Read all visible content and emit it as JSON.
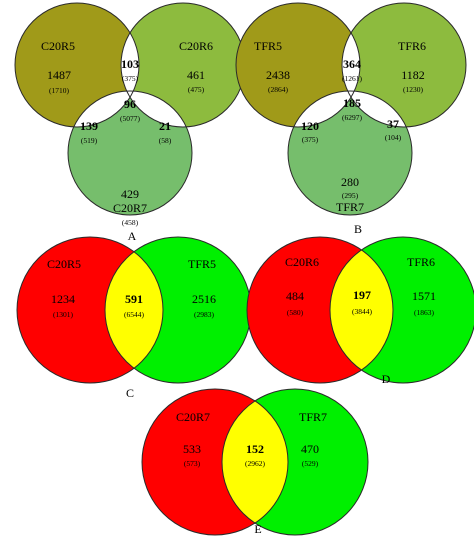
{
  "colors": {
    "olive": "#a09a19",
    "lightgreen": "#8dbb3e",
    "midgreen": "#76be6c",
    "white": "#ffffff",
    "red": "#ff0000",
    "green": "#00f000",
    "yellow": "#ffff00"
  },
  "panels": {
    "A": {
      "caption": "A",
      "set1": {
        "label": "C20R5",
        "only": "1487",
        "only_sub": "(1710)"
      },
      "set2": {
        "label": "C20R6",
        "only": "461",
        "only_sub": "(475)"
      },
      "set3": {
        "label": "C20R7",
        "only": "429",
        "only_sub": "(458)"
      },
      "i12": {
        "val": "103",
        "sub": "(375)"
      },
      "i13": {
        "val": "139",
        "sub": "(519)"
      },
      "i23": {
        "val": "21",
        "sub": "(58)"
      },
      "i123": {
        "val": "96",
        "sub": "(5077)"
      }
    },
    "B": {
      "caption": "B",
      "set1": {
        "label": "TFR5",
        "only": "2438",
        "only_sub": "(2864)"
      },
      "set2": {
        "label": "TFR6",
        "only": "1182",
        "only_sub": "(1230)"
      },
      "set3": {
        "label": "TFR7",
        "only": "280",
        "only_sub": "(295)"
      },
      "i12": {
        "val": "364",
        "sub": "(1261)"
      },
      "i13": {
        "val": "120",
        "sub": "(375)"
      },
      "i23": {
        "val": "37",
        "sub": "(104)"
      },
      "i123": {
        "val": "185",
        "sub": "(6297)"
      }
    },
    "C": {
      "caption": "C",
      "left": {
        "label": "C20R5",
        "only": "1234",
        "only_sub": "(1301)"
      },
      "right": {
        "label": "TFR5",
        "only": "2516",
        "only_sub": "(2983)"
      },
      "inter": {
        "val": "591",
        "sub": "(6544)"
      }
    },
    "D": {
      "caption": "D",
      "left": {
        "label": "C20R6",
        "only": "484",
        "only_sub": "(580)"
      },
      "right": {
        "label": "TFR6",
        "only": "1571",
        "only_sub": "(1863)"
      },
      "inter": {
        "val": "197",
        "sub": "(3844)"
      }
    },
    "E": {
      "caption": "E",
      "left": {
        "label": "C20R7",
        "only": "533",
        "only_sub": "(573)"
      },
      "right": {
        "label": "TFR7",
        "only": "470",
        "only_sub": "(529)"
      },
      "inter": {
        "val": "152",
        "sub": "(2962)"
      }
    }
  }
}
